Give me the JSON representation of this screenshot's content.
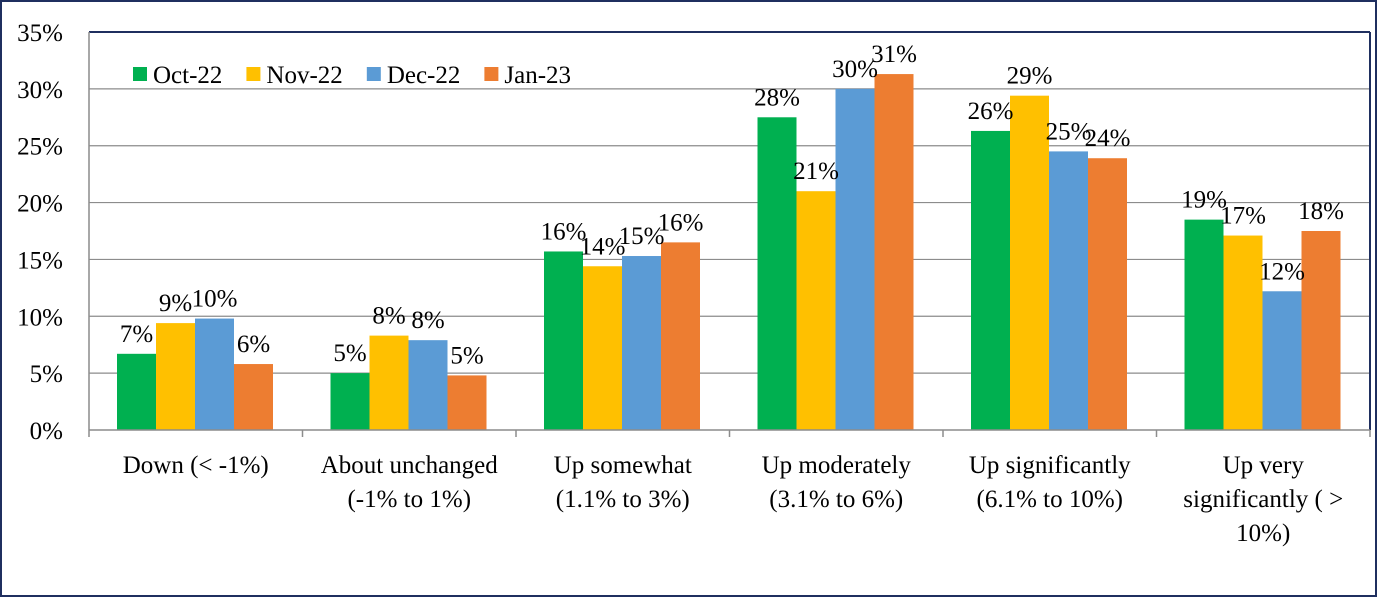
{
  "chart_data": {
    "type": "bar",
    "title": "",
    "xlabel": "",
    "ylabel": "",
    "ylim": [
      0,
      35
    ],
    "yticks": [
      0,
      5,
      10,
      15,
      20,
      25,
      30,
      35
    ],
    "ytick_labels": [
      "0%",
      "5%",
      "10%",
      "15%",
      "20%",
      "25%",
      "30%",
      "35%"
    ],
    "grid": true,
    "legend_position": "top-left",
    "categories": [
      [
        "Down (< -1%)"
      ],
      [
        "About unchanged",
        "(-1% to 1%)"
      ],
      [
        "Up somewhat",
        "(1.1% to 3%)"
      ],
      [
        "Up moderately",
        "(3.1% to 6%)"
      ],
      [
        "Up significantly",
        "(6.1% to 10%)"
      ],
      [
        "Up very",
        "significantly ( >",
        "10%)"
      ]
    ],
    "series": [
      {
        "name": "Oct-22",
        "color": "#00b050",
        "values": [
          6.7,
          5.0,
          15.7,
          27.5,
          26.3,
          18.5
        ],
        "labels": [
          "7%",
          "5%",
          "16%",
          "28%",
          "26%",
          "19%"
        ]
      },
      {
        "name": "Nov-22",
        "color": "#ffc000",
        "values": [
          9.4,
          8.3,
          14.4,
          21.0,
          29.4,
          17.1
        ],
        "labels": [
          "9%",
          "8%",
          "14%",
          "21%",
          "29%",
          "17%"
        ]
      },
      {
        "name": "Dec-22",
        "color": "#5b9bd5",
        "values": [
          9.8,
          7.9,
          15.3,
          30.0,
          24.5,
          12.2
        ],
        "labels": [
          "10%",
          "8%",
          "15%",
          "30%",
          "25%",
          "12%"
        ]
      },
      {
        "name": "Jan-23",
        "color": "#ed7d31",
        "values": [
          5.8,
          4.8,
          16.5,
          31.3,
          23.9,
          17.5
        ],
        "labels": [
          "6%",
          "5%",
          "16%",
          "31%",
          "24%",
          "18%"
        ]
      }
    ]
  }
}
